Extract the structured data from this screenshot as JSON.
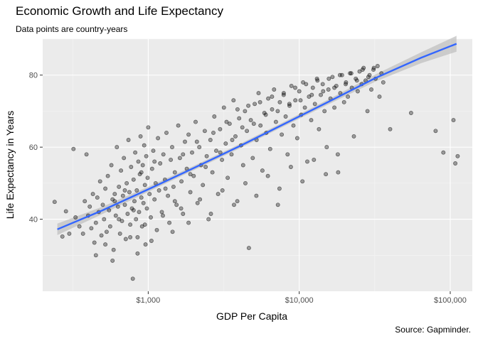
{
  "chart_data": {
    "type": "scatter",
    "title": "Economic Growth and Life Expectancy",
    "subtitle": "Data points are country-years",
    "caption": "Source: Gapminder.",
    "xlabel": "GDP Per Capita",
    "ylabel": "Life Expectancy in Years",
    "x_scale": "log10",
    "xlim": [
      200,
      140000
    ],
    "ylim": [
      20,
      90
    ],
    "x_ticks": [
      {
        "value": 1000,
        "label": "$1,000"
      },
      {
        "value": 10000,
        "label": "$10,000"
      },
      {
        "value": 100000,
        "label": "$100,000"
      }
    ],
    "y_ticks": [
      {
        "value": 40,
        "label": "40"
      },
      {
        "value": 60,
        "label": "60"
      },
      {
        "value": 80,
        "label": "80"
      }
    ],
    "grid": true,
    "point_color": "#000000",
    "trend_color": "#3366FF",
    "trend_band_color": "#BEBEBE",
    "panel_color": "#EBEBEB",
    "trend_line": [
      [
        250,
        37.2
      ],
      [
        500,
        42.5
      ],
      [
        1000,
        48.3
      ],
      [
        2000,
        54.2
      ],
      [
        4000,
        60.2
      ],
      [
        8000,
        66.5
      ],
      [
        16000,
        72.8
      ],
      [
        32000,
        79.2
      ],
      [
        64000,
        84.8
      ],
      [
        110000,
        88.7
      ]
    ],
    "points": [
      [
        240,
        44.8
      ],
      [
        270,
        35.2
      ],
      [
        285,
        42.2
      ],
      [
        300,
        36.0
      ],
      [
        320,
        59.5
      ],
      [
        330,
        40.5
      ],
      [
        350,
        38.0
      ],
      [
        370,
        36.0
      ],
      [
        380,
        45.0
      ],
      [
        390,
        58.0
      ],
      [
        400,
        41.0
      ],
      [
        410,
        43.5
      ],
      [
        420,
        37.5
      ],
      [
        430,
        47.0
      ],
      [
        440,
        33.5
      ],
      [
        450,
        39.0
      ],
      [
        460,
        46.0
      ],
      [
        470,
        42.0
      ],
      [
        480,
        50.5
      ],
      [
        490,
        35.5
      ],
      [
        500,
        44.0
      ],
      [
        510,
        40.0
      ],
      [
        520,
        48.5
      ],
      [
        530,
        36.5
      ],
      [
        540,
        52.0
      ],
      [
        550,
        42.5
      ],
      [
        560,
        38.0
      ],
      [
        570,
        55.0
      ],
      [
        580,
        45.5
      ],
      [
        590,
        31.5
      ],
      [
        600,
        47.0
      ],
      [
        610,
        41.0
      ],
      [
        620,
        60.0
      ],
      [
        630,
        43.5
      ],
      [
        640,
        49.0
      ],
      [
        650,
        36.0
      ],
      [
        660,
        53.5
      ],
      [
        670,
        39.5
      ],
      [
        680,
        46.5
      ],
      [
        690,
        57.0
      ],
      [
        700,
        44.0
      ],
      [
        710,
        34.5
      ],
      [
        720,
        50.0
      ],
      [
        730,
        41.5
      ],
      [
        740,
        62.0
      ],
      [
        750,
        47.5
      ],
      [
        760,
        38.5
      ],
      [
        770,
        54.5
      ],
      [
        780,
        43.0
      ],
      [
        790,
        23.5
      ],
      [
        800,
        51.0
      ],
      [
        810,
        45.0
      ],
      [
        820,
        58.5
      ],
      [
        830,
        40.0
      ],
      [
        840,
        48.0
      ],
      [
        850,
        35.0
      ],
      [
        860,
        56.0
      ],
      [
        870,
        42.0
      ],
      [
        880,
        52.5
      ],
      [
        890,
        63.0
      ],
      [
        900,
        46.0
      ],
      [
        910,
        38.0
      ],
      [
        920,
        55.0
      ],
      [
        930,
        44.5
      ],
      [
        940,
        60.5
      ],
      [
        950,
        49.5
      ],
      [
        960,
        33.0
      ],
      [
        970,
        57.5
      ],
      [
        980,
        43.0
      ],
      [
        990,
        51.5
      ],
      [
        1000,
        65.5
      ],
      [
        1020,
        47.0
      ],
      [
        1040,
        40.5
      ],
      [
        1060,
        54.0
      ],
      [
        1080,
        59.0
      ],
      [
        1100,
        45.5
      ],
      [
        1120,
        50.0
      ],
      [
        1140,
        37.0
      ],
      [
        1160,
        62.5
      ],
      [
        1180,
        48.0
      ],
      [
        1200,
        55.5
      ],
      [
        1230,
        42.0
      ],
      [
        1260,
        58.0
      ],
      [
        1290,
        51.0
      ],
      [
        1320,
        64.0
      ],
      [
        1350,
        46.5
      ],
      [
        1380,
        39.0
      ],
      [
        1410,
        56.5
      ],
      [
        1440,
        60.0
      ],
      [
        1470,
        49.0
      ],
      [
        1500,
        53.0
      ],
      [
        1540,
        44.0
      ],
      [
        1580,
        66.0
      ],
      [
        1620,
        57.0
      ],
      [
        1660,
        50.5
      ],
      [
        1700,
        41.5
      ],
      [
        1750,
        61.5
      ],
      [
        1800,
        54.0
      ],
      [
        1850,
        63.5
      ],
      [
        1900,
        47.5
      ],
      [
        1950,
        58.5
      ],
      [
        2000,
        52.0
      ],
      [
        2060,
        67.0
      ],
      [
        2120,
        44.5
      ],
      [
        2180,
        60.0
      ],
      [
        2240,
        55.0
      ],
      [
        2300,
        49.5
      ],
      [
        2370,
        64.5
      ],
      [
        2440,
        57.5
      ],
      [
        2510,
        40.0
      ],
      [
        2580,
        62.0
      ],
      [
        2660,
        53.0
      ],
      [
        2740,
        68.5
      ],
      [
        2820,
        59.0
      ],
      [
        2900,
        47.0
      ],
      [
        2990,
        65.0
      ],
      [
        3080,
        56.5
      ],
      [
        3170,
        71.0
      ],
      [
        3260,
        61.0
      ],
      [
        3360,
        51.5
      ],
      [
        3460,
        66.5
      ],
      [
        3560,
        58.0
      ],
      [
        3670,
        73.0
      ],
      [
        3780,
        63.0
      ],
      [
        3890,
        45.0
      ],
      [
        4000,
        68.0
      ],
      [
        4120,
        60.5
      ],
      [
        4250,
        55.0
      ],
      [
        4370,
        70.0
      ],
      [
        4500,
        64.5
      ],
      [
        4640,
        32.0
      ],
      [
        4780,
        67.5
      ],
      [
        4920,
        57.0
      ],
      [
        5070,
        72.0
      ],
      [
        5220,
        62.0
      ],
      [
        5380,
        75.0
      ],
      [
        5540,
        66.0
      ],
      [
        5700,
        53.5
      ],
      [
        5880,
        69.5
      ],
      [
        6050,
        64.0
      ],
      [
        6230,
        73.5
      ],
      [
        6420,
        59.5
      ],
      [
        6610,
        70.5
      ],
      [
        6810,
        76.0
      ],
      [
        7010,
        67.0
      ],
      [
        7220,
        44.0
      ],
      [
        7440,
        72.5
      ],
      [
        7660,
        63.5
      ],
      [
        7890,
        74.5
      ],
      [
        8130,
        68.5
      ],
      [
        8370,
        58.0
      ],
      [
        8620,
        71.5
      ],
      [
        8880,
        77.0
      ],
      [
        9150,
        66.0
      ],
      [
        9420,
        73.0
      ],
      [
        9700,
        62.5
      ],
      [
        10000,
        75.5
      ],
      [
        10300,
        69.0
      ],
      [
        10600,
        78.0
      ],
      [
        10900,
        71.0
      ],
      [
        11300,
        56.0
      ],
      [
        11600,
        74.0
      ],
      [
        12000,
        67.5
      ],
      [
        12300,
        76.5
      ],
      [
        12700,
        72.0
      ],
      [
        13100,
        79.0
      ],
      [
        13500,
        65.0
      ],
      [
        13900,
        74.5
      ],
      [
        14300,
        77.5
      ],
      [
        14700,
        70.0
      ],
      [
        15200,
        60.0
      ],
      [
        15600,
        76.0
      ],
      [
        16100,
        73.5
      ],
      [
        16600,
        79.5
      ],
      [
        17100,
        71.0
      ],
      [
        17600,
        77.0
      ],
      [
        18100,
        53.0
      ],
      [
        18700,
        75.0
      ],
      [
        19200,
        80.0
      ],
      [
        19800,
        72.5
      ],
      [
        20400,
        78.0
      ],
      [
        21000,
        74.0
      ],
      [
        21700,
        80.5
      ],
      [
        22300,
        76.5
      ],
      [
        23000,
        63.0
      ],
      [
        23700,
        79.0
      ],
      [
        24400,
        75.5
      ],
      [
        25100,
        81.0
      ],
      [
        25900,
        77.5
      ],
      [
        26700,
        82.0
      ],
      [
        27500,
        78.5
      ],
      [
        28300,
        70.0
      ],
      [
        29200,
        80.0
      ],
      [
        30000,
        76.0
      ],
      [
        31000,
        81.5
      ],
      [
        32000,
        79.0
      ],
      [
        33000,
        82.5
      ],
      [
        34000,
        74.0
      ],
      [
        35000,
        80.5
      ],
      [
        36000,
        78.0
      ],
      [
        40000,
        65.0
      ],
      [
        55000,
        69.5
      ],
      [
        80000,
        64.5
      ],
      [
        90000,
        58.5
      ],
      [
        105000,
        67.5
      ],
      [
        108000,
        55.5
      ],
      [
        112000,
        57.5
      ],
      [
        600,
        45.0
      ],
      [
        700,
        48.0
      ],
      [
        800,
        42.5
      ],
      [
        900,
        53.0
      ],
      [
        1100,
        56.0
      ],
      [
        1300,
        48.5
      ],
      [
        1500,
        45.0
      ],
      [
        1700,
        58.0
      ],
      [
        1900,
        52.5
      ],
      [
        2100,
        61.5
      ],
      [
        2400,
        54.5
      ],
      [
        2700,
        64.0
      ],
      [
        3000,
        58.5
      ],
      [
        3300,
        67.0
      ],
      [
        3600,
        62.0
      ],
      [
        3900,
        70.5
      ],
      [
        4200,
        65.5
      ],
      [
        4600,
        71.5
      ],
      [
        5000,
        66.5
      ],
      [
        5500,
        72.5
      ],
      [
        6000,
        69.0
      ],
      [
        6600,
        74.0
      ],
      [
        7200,
        70.0
      ],
      [
        7900,
        75.0
      ],
      [
        8600,
        72.0
      ],
      [
        9400,
        76.5
      ],
      [
        10200,
        73.0
      ],
      [
        11100,
        77.5
      ],
      [
        12100,
        74.5
      ],
      [
        13200,
        78.5
      ],
      [
        14400,
        75.5
      ],
      [
        15700,
        79.0
      ],
      [
        17100,
        76.5
      ],
      [
        18600,
        80.0
      ],
      [
        20300,
        77.5
      ],
      [
        22100,
        80.5
      ],
      [
        24100,
        78.5
      ],
      [
        26300,
        81.5
      ],
      [
        28700,
        79.5
      ],
      [
        31200,
        82.0
      ],
      [
        450,
        30.0
      ],
      [
        520,
        33.0
      ],
      [
        580,
        28.5
      ],
      [
        640,
        40.0
      ],
      [
        760,
        35.0
      ],
      [
        850,
        30.5
      ],
      [
        950,
        38.5
      ],
      [
        1050,
        34.0
      ],
      [
        1250,
        41.0
      ],
      [
        1450,
        36.5
      ],
      [
        1650,
        43.0
      ],
      [
        1850,
        39.0
      ],
      [
        2200,
        45.5
      ],
      [
        2600,
        41.5
      ],
      [
        3100,
        48.0
      ],
      [
        3700,
        44.0
      ],
      [
        4400,
        50.0
      ],
      [
        5200,
        46.5
      ],
      [
        6200,
        52.0
      ],
      [
        7400,
        48.5
      ],
      [
        8800,
        54.5
      ],
      [
        10500,
        50.5
      ],
      [
        12500,
        56.5
      ],
      [
        15000,
        52.5
      ],
      [
        18000,
        58.0
      ]
    ]
  }
}
